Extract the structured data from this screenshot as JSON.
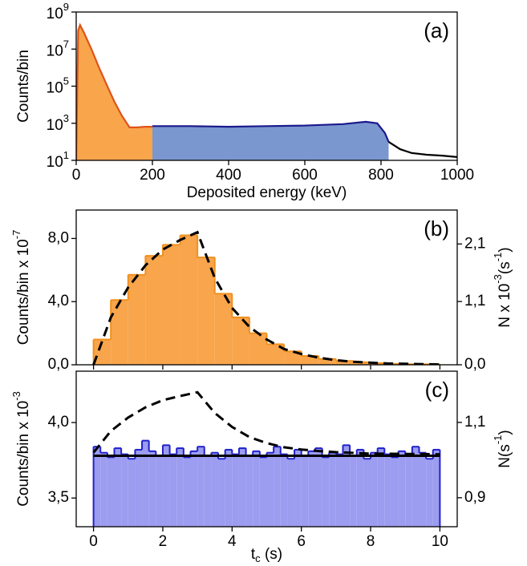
{
  "chart_data": [
    {
      "type": "area",
      "label": "(a)",
      "x_label": "Deposited energy (keV)",
      "y_label": "Counts/bin",
      "xlim": [
        0,
        1000
      ],
      "ylim": [
        10,
        1000000000
      ],
      "log_y": true,
      "xticks": [
        0,
        200,
        400,
        600,
        800,
        1000
      ],
      "yticks": [
        {
          "value": 10,
          "label": "10^{1}"
        },
        {
          "value": 1000,
          "label": "10^{3}"
        },
        {
          "value": 100000,
          "label": "10^{5}"
        },
        {
          "value": 10000000,
          "label": "10^{7}"
        },
        {
          "value": 1000000000,
          "label": "10^{9}"
        }
      ],
      "series": [
        {
          "color": "#e0531a",
          "fill": "#f8a54c",
          "x": [
            0,
            5,
            10,
            20,
            40,
            60,
            80,
            100,
            120,
            140,
            160,
            180,
            200
          ],
          "values": [
            10,
            100000000,
            200000000,
            80000000,
            10000000,
            1000000,
            120000,
            15000,
            2500,
            600,
            600,
            650,
            650
          ]
        },
        {
          "color": "#1a1a8c",
          "fill": "#7b97cf",
          "x": [
            200,
            300,
            400,
            500,
            600,
            700,
            760,
            790,
            810,
            820
          ],
          "values": [
            700,
            700,
            650,
            700,
            750,
            900,
            1200,
            1000,
            300,
            100
          ]
        },
        {
          "color": "#000000",
          "fill": null,
          "x": [
            820,
            850,
            880,
            920,
            960,
            1000
          ],
          "values": [
            100,
            40,
            25,
            20,
            18,
            15
          ]
        }
      ]
    },
    {
      "type": "histogram",
      "label": "(b)",
      "y_label": "Counts/bin x 10^{-7}",
      "y2_label": "N x 10^{-3}(s^{-1})",
      "xlim": [
        -0.5,
        10.5
      ],
      "ylim": [
        0,
        9.8
      ],
      "y2lim": [
        0,
        2.69
      ],
      "xticks": [
        0,
        2,
        4,
        6,
        8,
        10
      ],
      "yticks": [
        {
          "value": 0,
          "label": "0,0"
        },
        {
          "value": 4,
          "label": "4,0"
        },
        {
          "value": 8,
          "label": "8,0"
        }
      ],
      "y2ticks": [
        {
          "value": 0,
          "label": "0,0"
        },
        {
          "value": 1.1,
          "label": "1,1"
        },
        {
          "value": 2.1,
          "label": "2,1"
        }
      ],
      "color": "#f0901e",
      "fill": "#f8a54c",
      "bins": [
        0,
        0.5,
        1,
        1.5,
        2,
        2.5,
        3,
        3.5,
        4,
        4.5,
        5,
        5.5,
        6,
        6.5,
        7,
        7.5,
        8,
        8.5,
        9,
        9.5,
        10
      ],
      "values": [
        1.6,
        4.1,
        5.7,
        6.9,
        7.6,
        8.2,
        6.8,
        4.5,
        3.0,
        2.0,
        1.3,
        0.85,
        0.56,
        0.37,
        0.24,
        0.16,
        0.1,
        0.06,
        0.04,
        0.03
      ],
      "lines": [
        {
          "color": "#000000",
          "dashed": true,
          "x": [
            0,
            0.5,
            1,
            1.5,
            2,
            2.5,
            3,
            3.5,
            4,
            4.5,
            5,
            5.5,
            6,
            6.5,
            7,
            7.5,
            8,
            8.5,
            9,
            9.5,
            10
          ],
          "values": [
            0,
            3.0,
            4.9,
            6.3,
            7.3,
            7.9,
            8.4,
            5.5,
            3.6,
            2.4,
            1.6,
            1.0,
            0.68,
            0.45,
            0.29,
            0.19,
            0.13,
            0.08,
            0.06,
            0.04,
            0.02
          ]
        }
      ]
    },
    {
      "type": "histogram",
      "label": "(c)",
      "x_label": "t_{c} (s)",
      "y_label": "Counts/bin x 10^{-3}",
      "y2_label": "N(s^{-1})",
      "xlim": [
        -0.5,
        10.5
      ],
      "ylim": [
        3.31,
        4.34
      ],
      "y2lim": [
        0.823,
        1.236
      ],
      "xticks": [
        0,
        2,
        4,
        6,
        8,
        10
      ],
      "yticks": [
        {
          "value": 3.5,
          "label": "3,5"
        },
        {
          "value": 4,
          "label": "4,0"
        }
      ],
      "y2ticks": [
        {
          "value": 0.9,
          "label": "0,9"
        },
        {
          "value": 1.1,
          "label": "1,1"
        }
      ],
      "color": "#2222cc",
      "fill": "#9c9cf0",
      "bins": [
        0,
        0.2,
        0.4,
        0.6,
        0.8,
        1,
        1.2,
        1.4,
        1.6,
        1.8,
        2,
        2.2,
        2.4,
        2.6,
        2.8,
        3,
        3.2,
        3.4,
        3.6,
        3.8,
        4,
        4.2,
        4.4,
        4.6,
        4.8,
        5,
        5.2,
        5.4,
        5.6,
        5.8,
        6,
        6.2,
        6.4,
        6.6,
        6.8,
        7,
        7.2,
        7.4,
        7.6,
        7.8,
        8,
        8.2,
        8.4,
        8.6,
        8.8,
        9,
        9.2,
        9.4,
        9.6,
        9.8,
        10
      ],
      "values": [
        3.84,
        3.8,
        3.77,
        3.83,
        3.79,
        3.76,
        3.82,
        3.88,
        3.81,
        3.78,
        3.85,
        3.79,
        3.83,
        3.77,
        3.81,
        3.84,
        3.78,
        3.8,
        3.76,
        3.82,
        3.79,
        3.83,
        3.78,
        3.81,
        3.77,
        3.8,
        3.84,
        3.79,
        3.76,
        3.82,
        3.78,
        3.81,
        3.83,
        3.77,
        3.8,
        3.79,
        3.85,
        3.78,
        3.82,
        3.76,
        3.8,
        3.83,
        3.79,
        3.77,
        3.81,
        3.78,
        3.84,
        3.8,
        3.76,
        3.82
      ],
      "lines": [
        {
          "color": "#000000",
          "dashed": false,
          "x": [
            0,
            10
          ],
          "values": [
            3.78,
            3.78
          ]
        },
        {
          "color": "#000000",
          "dashed": true,
          "axis": "y2",
          "x": [
            0,
            0.5,
            1,
            1.5,
            2,
            2.5,
            3,
            3.5,
            4,
            4.5,
            5,
            5.5,
            6,
            6.5,
            7,
            7.5,
            8,
            8.5,
            9,
            9.5,
            10
          ],
          "values": [
            1.02,
            1.077,
            1.113,
            1.14,
            1.159,
            1.17,
            1.18,
            1.125,
            1.088,
            1.061,
            1.045,
            1.034,
            1.028,
            1.024,
            1.021,
            1.019,
            1.017,
            1.017,
            1.016,
            1.016,
            1.015
          ]
        }
      ]
    }
  ]
}
